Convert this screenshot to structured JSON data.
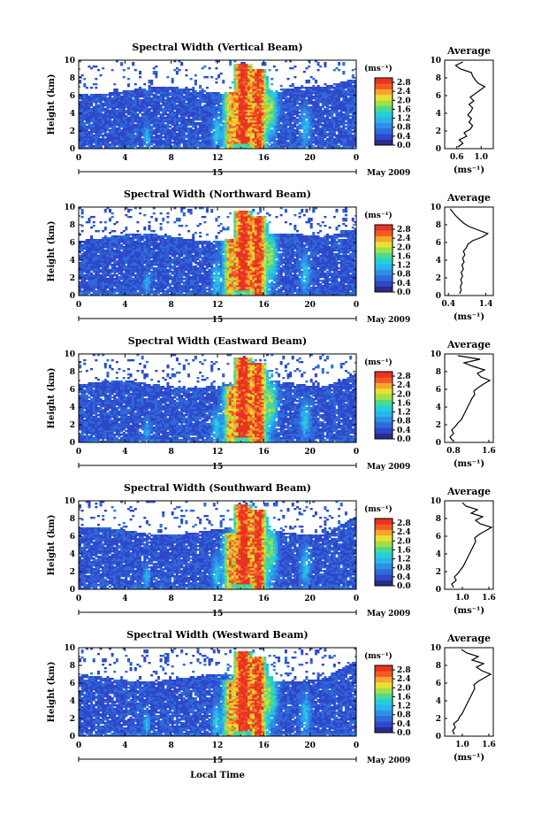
{
  "chart_data": {
    "type": "heatmap",
    "xlabel": "Local Time",
    "date_label": "May 2009",
    "day_label": "15",
    "x_ticks": [
      "0",
      "4",
      "8",
      "12",
      "16",
      "20",
      "0"
    ],
    "xlim": [
      0,
      24
    ],
    "ylabel": "Height (km)",
    "y_ticks": [
      "0",
      "2",
      "4",
      "6",
      "8",
      "10"
    ],
    "ylim": [
      0,
      10
    ],
    "colorbar": {
      "unit": "(ms⁻¹)",
      "ticks": [
        "0.0",
        "0.4",
        "0.8",
        "1.2",
        "1.6",
        "2.0",
        "2.4",
        "2.8"
      ],
      "range": [
        0,
        3.0
      ],
      "colors": [
        "#2b2b8c",
        "#2f47c9",
        "#2f6bd9",
        "#2e8fe6",
        "#29b4ef",
        "#25cfd6",
        "#4fd98f",
        "#9fe04a",
        "#e8e035",
        "#f7a62b",
        "#f45a26",
        "#e83322"
      ]
    },
    "avg_title": "Average",
    "avg_xlabel": "(ms⁻¹)",
    "panels": [
      {
        "title": "Spectral Width (Vertical Beam)",
        "avg_xticks": [
          "0.6",
          "1.0"
        ],
        "avg_xtick_values": [
          0.6,
          1.0
        ],
        "avg_xlim": [
          0.4,
          1.2
        ],
        "profile_height": [
          0.2,
          0.6,
          1.0,
          1.4,
          1.8,
          2.2,
          2.6,
          3.0,
          3.4,
          3.8,
          4.2,
          4.6,
          5.0,
          5.4,
          5.8,
          6.2,
          6.6,
          7.0,
          7.4,
          7.8,
          8.2,
          8.6,
          9.0,
          9.4,
          9.8
        ],
        "profile": [
          0.62,
          0.7,
          0.64,
          0.76,
          0.72,
          0.82,
          0.86,
          0.8,
          0.84,
          0.78,
          0.83,
          0.86,
          0.8,
          0.88,
          0.82,
          0.9,
          0.98,
          1.06,
          0.95,
          0.9,
          0.86,
          0.84,
          0.66,
          0.58,
          0.7
        ]
      },
      {
        "title": "Spectral Width (Northward Beam)",
        "avg_xticks": [
          "0.4",
          "1.4"
        ],
        "avg_xtick_values": [
          0.4,
          1.4
        ],
        "avg_xlim": [
          0.3,
          1.6
        ],
        "profile_height": [
          0.2,
          0.6,
          1.0,
          1.4,
          1.8,
          2.2,
          2.6,
          3.0,
          3.4,
          3.8,
          4.2,
          4.6,
          5.0,
          5.4,
          5.8,
          6.2,
          6.6,
          7.0,
          7.4,
          7.8,
          8.2,
          8.6,
          9.0,
          9.4,
          9.8
        ],
        "profile": [
          0.7,
          0.74,
          0.72,
          0.76,
          0.73,
          0.78,
          0.74,
          0.8,
          0.76,
          0.82,
          0.78,
          0.84,
          0.8,
          0.88,
          0.92,
          1.05,
          1.3,
          1.45,
          1.2,
          0.95,
          0.8,
          0.7,
          0.6,
          0.52,
          0.45
        ]
      },
      {
        "title": "Spectral Width (Eastward Beam)",
        "avg_xticks": [
          "0.8",
          "1.6"
        ],
        "avg_xtick_values": [
          0.8,
          1.6
        ],
        "avg_xlim": [
          0.6,
          1.7
        ],
        "profile_height": [
          0.2,
          0.6,
          1.0,
          1.4,
          1.8,
          2.2,
          2.6,
          3.0,
          3.4,
          3.8,
          4.2,
          4.6,
          5.0,
          5.4,
          5.8,
          6.2,
          6.6,
          7.0,
          7.4,
          7.8,
          8.2,
          8.6,
          9.0,
          9.4,
          9.8
        ],
        "profile": [
          0.78,
          0.72,
          0.8,
          0.76,
          0.84,
          0.9,
          0.98,
          1.02,
          1.06,
          1.1,
          1.14,
          1.18,
          1.22,
          1.28,
          1.26,
          1.36,
          1.48,
          1.62,
          1.42,
          1.34,
          1.5,
          1.24,
          1.04,
          1.4,
          0.9
        ]
      },
      {
        "title": "Spectral Width (Southward Beam)",
        "avg_xticks": [
          "1.0",
          "1.6"
        ],
        "avg_xtick_values": [
          1.0,
          1.6
        ],
        "avg_xlim": [
          0.6,
          1.7
        ],
        "profile_height": [
          0.2,
          0.6,
          1.0,
          1.4,
          1.8,
          2.2,
          2.6,
          3.0,
          3.4,
          3.8,
          4.2,
          4.6,
          5.0,
          5.4,
          5.8,
          6.2,
          6.6,
          7.0,
          7.4,
          7.8,
          8.2,
          8.6,
          9.0,
          9.4,
          9.8
        ],
        "profile": [
          0.8,
          0.76,
          0.86,
          0.82,
          0.9,
          0.96,
          1.02,
          1.06,
          1.1,
          1.14,
          1.18,
          1.22,
          1.26,
          1.3,
          1.28,
          1.38,
          1.52,
          1.66,
          1.4,
          1.3,
          1.46,
          1.2,
          1.34,
          1.08,
          1.0
        ]
      },
      {
        "title": "Spectral Width (Westward Beam)",
        "avg_xticks": [
          "1.0",
          "1.6"
        ],
        "avg_xtick_values": [
          1.0,
          1.6
        ],
        "avg_xlim": [
          0.6,
          1.7
        ],
        "profile_height": [
          0.2,
          0.6,
          1.0,
          1.4,
          1.8,
          2.2,
          2.6,
          3.0,
          3.4,
          3.8,
          4.2,
          4.6,
          5.0,
          5.4,
          5.8,
          6.2,
          6.6,
          7.0,
          7.4,
          7.8,
          8.2,
          8.6,
          9.0,
          9.4,
          9.8
        ],
        "profile": [
          0.82,
          0.78,
          0.84,
          0.8,
          0.9,
          0.94,
          1.0,
          1.04,
          1.08,
          1.12,
          1.16,
          1.2,
          1.24,
          1.28,
          1.26,
          1.36,
          1.5,
          1.64,
          1.44,
          1.32,
          1.48,
          1.22,
          1.36,
          1.1,
          0.98
        ]
      }
    ]
  }
}
